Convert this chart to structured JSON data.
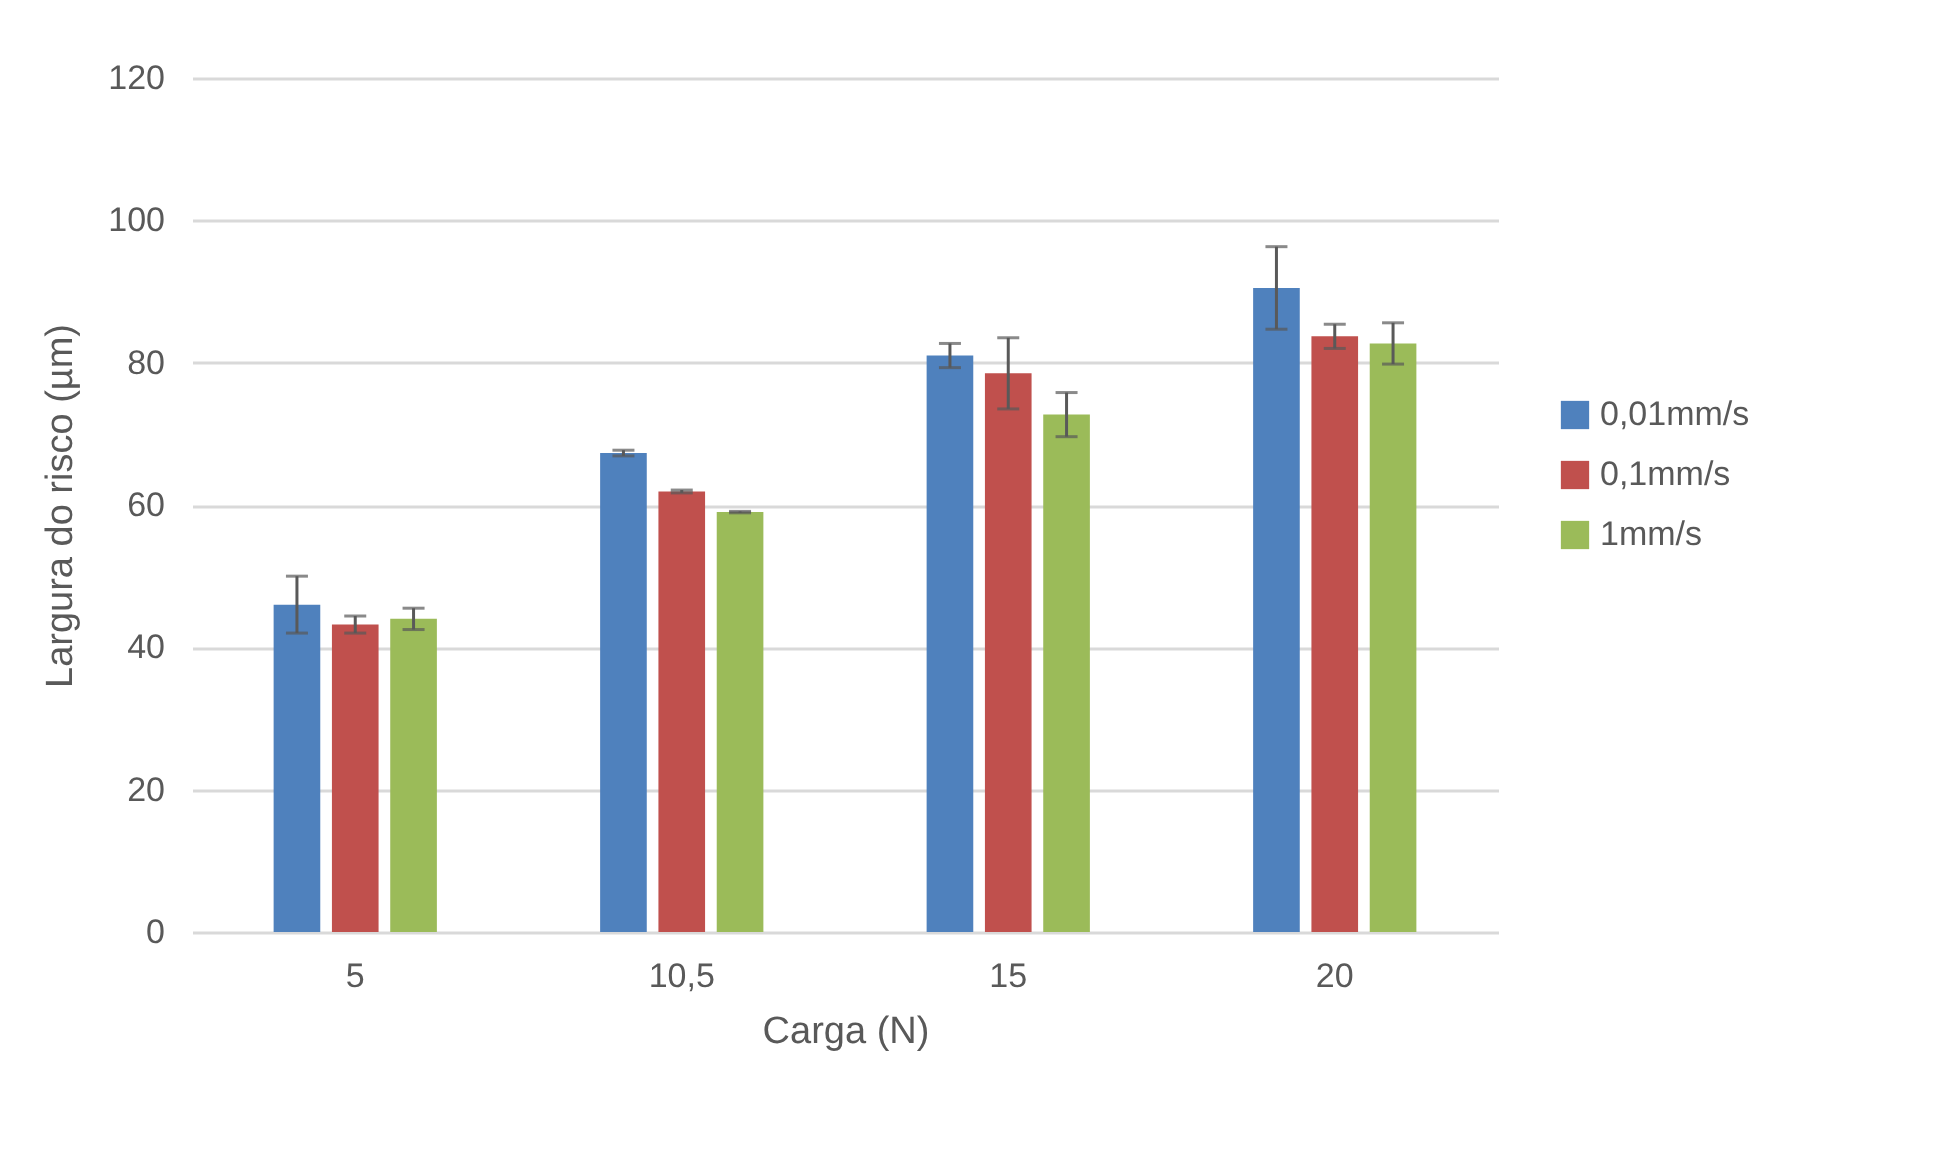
{
  "chart_data": {
    "type": "bar",
    "xlabel": "Carga (N)",
    "ylabel": "Largura do risco (µm)",
    "categories": [
      "5",
      "10,5",
      "15",
      "20"
    ],
    "series": [
      {
        "name": "0,01mm/s",
        "color": "#4f81bd",
        "values": [
          46.0,
          67.3,
          81.0,
          90.5
        ],
        "errors": [
          4.0,
          0.4,
          1.7,
          5.8
        ]
      },
      {
        "name": "0,1mm/s",
        "color": "#c0504d",
        "values": [
          43.2,
          61.9,
          78.5,
          83.7
        ],
        "errors": [
          1.2,
          0.2,
          5.0,
          1.7
        ]
      },
      {
        "name": "1mm/s",
        "color": "#9bbb59",
        "values": [
          44.0,
          59.0,
          72.7,
          82.7
        ],
        "errors": [
          1.5,
          0.1,
          3.1,
          2.9
        ]
      }
    ],
    "ylim": [
      0,
      120
    ],
    "yticks": [
      0,
      20,
      40,
      60,
      80,
      100,
      120
    ],
    "grid": "y",
    "legend": "right"
  }
}
